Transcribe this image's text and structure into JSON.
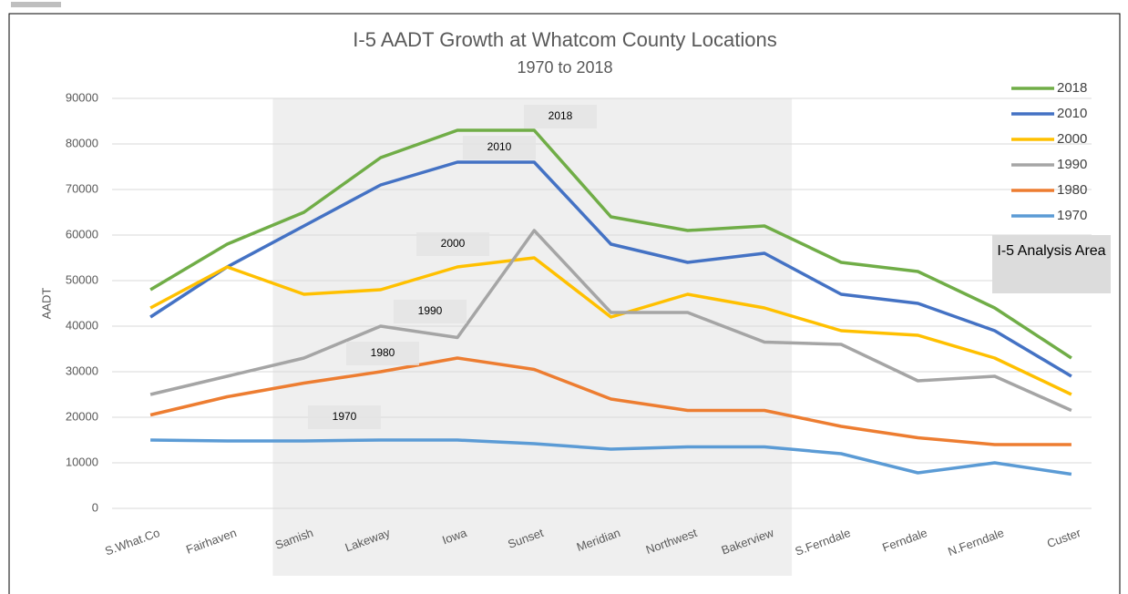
{
  "chart_data": {
    "type": "line",
    "title": "I-5 AADT Growth at Whatcom County Locations",
    "subtitle": "1970 to 2018",
    "y_label": "AADT",
    "categories": [
      "S.What.Co",
      "Fairhaven",
      "Samish",
      "Lakeway",
      "Iowa",
      "Sunset",
      "Meridian",
      "Northwest",
      "Bakerview",
      "S.Ferndale",
      "Ferndale",
      "N.Ferndale",
      "Custer"
    ],
    "series": [
      {
        "name": "2018",
        "color": "#70ad47",
        "values": [
          48000,
          58000,
          65000,
          77000,
          83000,
          83000,
          64000,
          61000,
          62000,
          54000,
          52000,
          44000,
          33000
        ]
      },
      {
        "name": "2010",
        "color": "#4472c4",
        "values": [
          42000,
          53000,
          62000,
          71000,
          76000,
          76000,
          58000,
          54000,
          56000,
          47000,
          45000,
          39000,
          29000
        ]
      },
      {
        "name": "2000",
        "color": "#ffc000",
        "values": [
          44000,
          53000,
          47000,
          48000,
          53000,
          55000,
          42000,
          47000,
          44000,
          39000,
          38000,
          33000,
          25000
        ]
      },
      {
        "name": "1990",
        "color": "#a5a5a5",
        "values": [
          25000,
          29000,
          33000,
          40000,
          37500,
          61000,
          43000,
          43000,
          36500,
          36000,
          28000,
          29000,
          21500
        ]
      },
      {
        "name": "1980",
        "color": "#ed7d31",
        "values": [
          20500,
          24500,
          27500,
          30000,
          33000,
          30500,
          24000,
          21500,
          21500,
          18000,
          15500,
          14000,
          14000
        ]
      },
      {
        "name": "1970",
        "color": "#5b9bd5",
        "values": [
          15000,
          14800,
          14800,
          15000,
          15000,
          14200,
          13000,
          13500,
          13500,
          12000,
          7800,
          10000,
          7500
        ]
      }
    ],
    "annotations": [
      "2018",
      "2010",
      "2000",
      "1990",
      "1980",
      "1970"
    ],
    "highlight_span": [
      "Samish",
      "Bakerview"
    ],
    "highlight_label": "I-5 Analysis Area",
    "ylim": [
      0,
      90000
    ],
    "yticks": [
      0,
      10000,
      20000,
      30000,
      40000,
      50000,
      60000,
      70000,
      80000,
      90000
    ],
    "grid": true,
    "legend": "right"
  }
}
